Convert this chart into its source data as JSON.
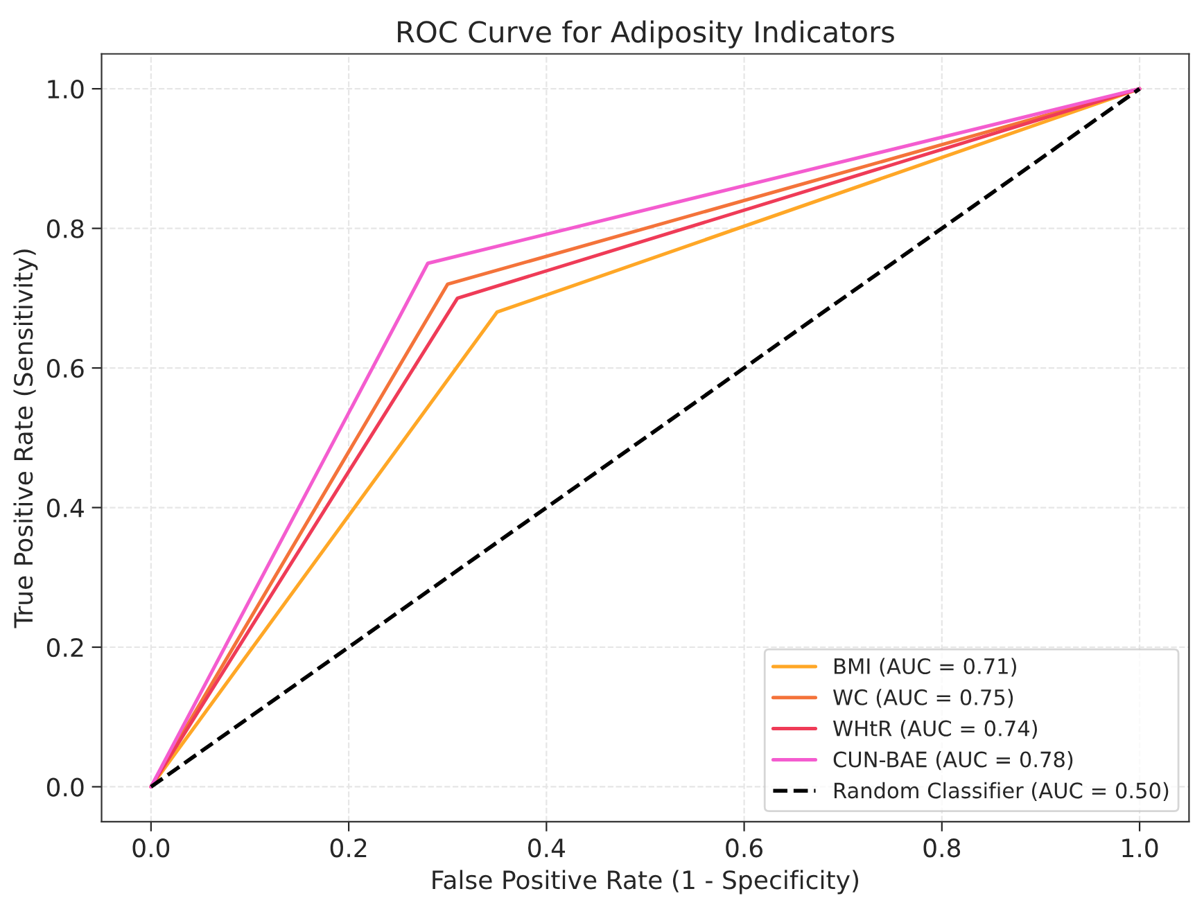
{
  "chart_data": {
    "type": "line",
    "title": "ROC Curve for Adiposity Indicators",
    "xlabel": "False Positive Rate (1 - Specificity)",
    "ylabel": "True Positive Rate (Sensitivity)",
    "series": [
      {
        "name": "BMI (AUC = 0.71)",
        "color": "#ffa726",
        "x": [
          0.0,
          0.35,
          1.0
        ],
        "values": [
          0.0,
          0.68,
          1.0
        ]
      },
      {
        "name": "WC (AUC = 0.75)",
        "color": "#f4733a",
        "x": [
          0.0,
          0.3,
          1.0
        ],
        "values": [
          0.0,
          0.72,
          1.0
        ]
      },
      {
        "name": "WHtR (AUC = 0.74)",
        "color": "#ef3b57",
        "x": [
          0.0,
          0.31,
          1.0
        ],
        "values": [
          0.0,
          0.7,
          1.0
        ]
      },
      {
        "name": "CUN-BAE (AUC = 0.78)",
        "color": "#f45ccf",
        "x": [
          0.0,
          0.28,
          1.0
        ],
        "values": [
          0.0,
          0.75,
          1.0
        ]
      },
      {
        "name": "Random Classifier (AUC = 0.50)",
        "color": "#000000",
        "x": [
          0.0,
          1.0
        ],
        "values": [
          0.0,
          1.0
        ],
        "line_style": "dashed"
      }
    ],
    "xlim": [
      -0.05,
      1.05
    ],
    "ylim": [
      -0.05,
      1.05
    ],
    "xticks": [
      {
        "value": 0,
        "label": "0.0"
      },
      0.2,
      0.4,
      0.6,
      0.8,
      {
        "value": 1,
        "label": "1.0"
      }
    ],
    "yticks": [
      {
        "value": 0,
        "label": "0.0"
      },
      0.2,
      0.4,
      0.6,
      0.8,
      {
        "value": 1,
        "label": "1.0"
      }
    ],
    "grid": true,
    "legend": "bottom right",
    "marker": "none"
  }
}
